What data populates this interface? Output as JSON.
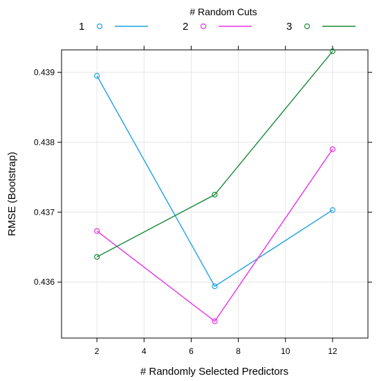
{
  "chart_data": {
    "type": "line",
    "title": "",
    "xlabel": "# Randomly Selected Predictors",
    "ylabel": "RMSE (Bootstrap)",
    "legend_title": "# Random Cuts",
    "legend_position": "top",
    "grid": true,
    "x": [
      2,
      7,
      12
    ],
    "xlim": [
      0.5,
      13.5
    ],
    "ylim": [
      0.4352,
      0.43932
    ],
    "xticks": [
      2,
      4,
      6,
      8,
      10,
      12
    ],
    "yticks": [
      0.436,
      0.437,
      0.438,
      0.439
    ],
    "xtick_labels": [
      "2",
      "4",
      "6",
      "8",
      "10",
      "12"
    ],
    "ytick_labels": [
      "0.436",
      "0.437",
      "0.438",
      "0.439"
    ],
    "series": [
      {
        "name": "1",
        "color": "#1ba1e2",
        "values": [
          0.43895,
          0.43594,
          0.43703
        ]
      },
      {
        "name": "2",
        "color": "#e830e8",
        "values": [
          0.43673,
          0.43544,
          0.4379
        ]
      },
      {
        "name": "3",
        "color": "#1a8a3a",
        "values": [
          0.43636,
          0.43725,
          0.4393
        ]
      }
    ]
  }
}
